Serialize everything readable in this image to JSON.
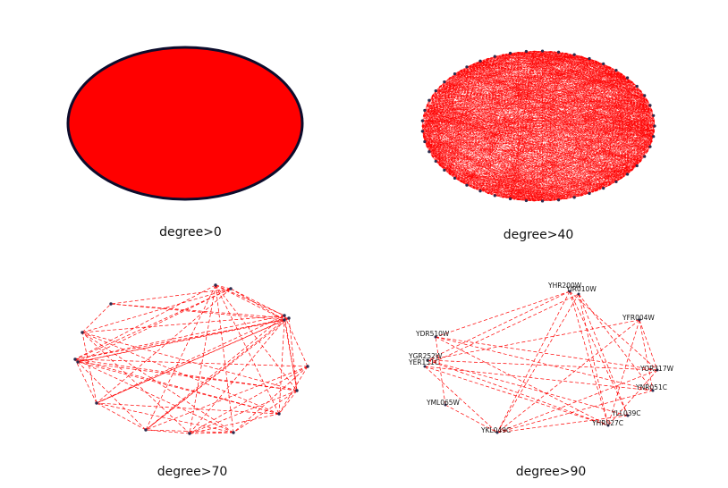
{
  "panels": [
    {
      "id": "p0",
      "caption": "degree>0"
    },
    {
      "id": "p40",
      "caption": "degree>40"
    },
    {
      "id": "p70",
      "caption": "degree>70"
    },
    {
      "id": "p90",
      "caption": "degree>90"
    }
  ],
  "colors": {
    "edge": "#ff0000",
    "node": "#2a2d50",
    "fill": "#ff0000",
    "outline": "#0c0c2c"
  },
  "network_90": {
    "nodes": [
      "YHR200W",
      "YIR010W",
      "YFR004W",
      "YDR510W",
      "YGR252W",
      "YER151C",
      "YOR317W",
      "YNR051C",
      "YML065W",
      "YLL039C",
      "YHR027C",
      "YKL049C"
    ]
  }
}
